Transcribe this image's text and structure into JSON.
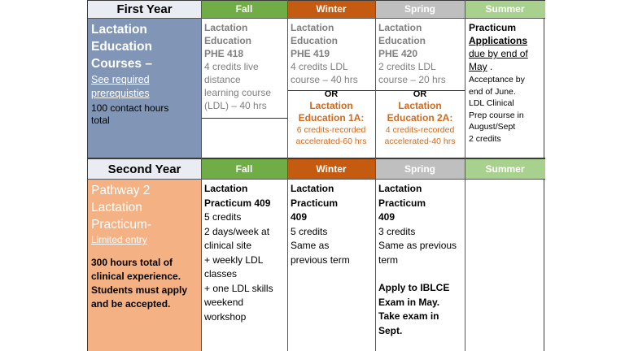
{
  "colors": {
    "fall": "#70ad47",
    "winter": "#c55a11",
    "spring": "#bfbfbf",
    "summer": "#a9d18e",
    "year1_side": "#8196b6",
    "year2_side": "#f4b183"
  },
  "year1": {
    "title": "First Year",
    "headers": {
      "fall": "Fall",
      "winter": "Winter",
      "spring": "Spring",
      "summer": "Summer"
    },
    "side": {
      "title_lines": [
        "Lactation",
        "Education",
        "Courses –"
      ],
      "link_lines": [
        "See required",
        "prerequisties"
      ],
      "hours": "100 contact hours total"
    },
    "fall": {
      "lines": [
        "Lactation",
        "Education",
        "PHE 418",
        "4 credits live",
        "distance",
        "learning course",
        "(LDL) – 40 hrs"
      ]
    },
    "winter": {
      "lines": [
        "Lactation",
        "Education",
        "PHE 419",
        "4 credits LDL",
        "course – 40 hrs"
      ],
      "or": "OR",
      "alt_lines": [
        "Lactation",
        "Education 1A:"
      ],
      "alt_detail_lines": [
        "6 credits-recorded",
        "accelerated-60 hrs"
      ]
    },
    "spring": {
      "lines": [
        "Lactation",
        "Education",
        "PHE 420",
        "2 credits LDL",
        "course – 20 hrs"
      ],
      "or": "OR",
      "alt_lines": [
        "Lactation",
        "Education 2A:"
      ],
      "alt_detail_lines": [
        "4 credits-recorded",
        "accelerated-40 hrs"
      ]
    },
    "summer": {
      "practicum": "Practicum",
      "applications": "Applications",
      "due_lines": [
        "due by end of",
        "May"
      ],
      "detail_lines": [
        "Acceptance by",
        "end of June.",
        "LDL Clinical",
        "Prep course in",
        "August/Sept",
        "2 credits"
      ]
    }
  },
  "year2": {
    "title": "Second Year",
    "headers": {
      "fall": "Fall",
      "winter": "Winter",
      "spring": "Spring",
      "summer": "Summer"
    },
    "side": {
      "title_lines": [
        "Pathway 2",
        "Lactation",
        "Practicum-"
      ],
      "link": "Limited entry",
      "note_lines": [
        "300 hours total of",
        "clinical experience.",
        "Students must apply",
        "and be accepted."
      ]
    },
    "fall": {
      "title_lines": [
        "Lactation",
        "Practicum 409"
      ],
      "lines": [
        "5 credits",
        "2 days/week at",
        "clinical site",
        "+ weekly LDL",
        "classes",
        "+ one LDL skills",
        "weekend",
        "workshop"
      ]
    },
    "winter": {
      "title": "Lactation Practicum 409",
      "lines": [
        "5 credits",
        "Same as",
        "previous term"
      ]
    },
    "spring": {
      "title": "Lactation Practicum 409",
      "lines": [
        "3 credits",
        "Same as previous",
        "term"
      ],
      "note_lines": [
        "Apply to IBLCE",
        "Exam in May.",
        "Take exam in",
        "Sept."
      ]
    }
  }
}
